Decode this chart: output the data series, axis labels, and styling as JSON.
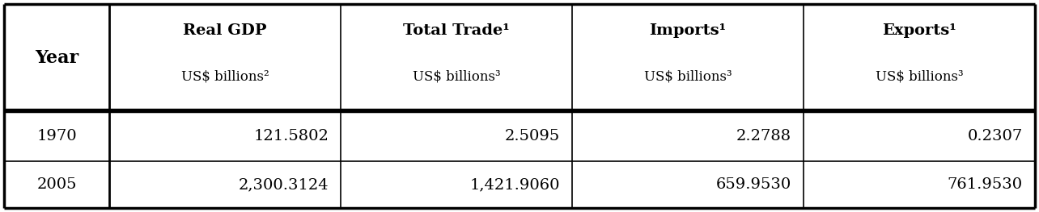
{
  "col_headers_line1": [
    "Real GDP",
    "Total Trade¹",
    "Imports¹",
    "Exports¹"
  ],
  "col_headers_line2": [
    "US$ billions²",
    "US$ billions³",
    "US$ billions³",
    "US$ billions³"
  ],
  "year_header": "Year",
  "rows": [
    [
      "1970",
      "121.5802",
      "2.5095",
      "2.2788",
      "0.2307"
    ],
    [
      "2005",
      "2,300.3124",
      "1,421.9060",
      "659.9530",
      "761.9530"
    ]
  ],
  "background_color": "#ffffff",
  "border_color": "#000000",
  "text_color": "#000000",
  "font_size_header": 14,
  "font_size_subheader": 12,
  "font_size_data": 14
}
